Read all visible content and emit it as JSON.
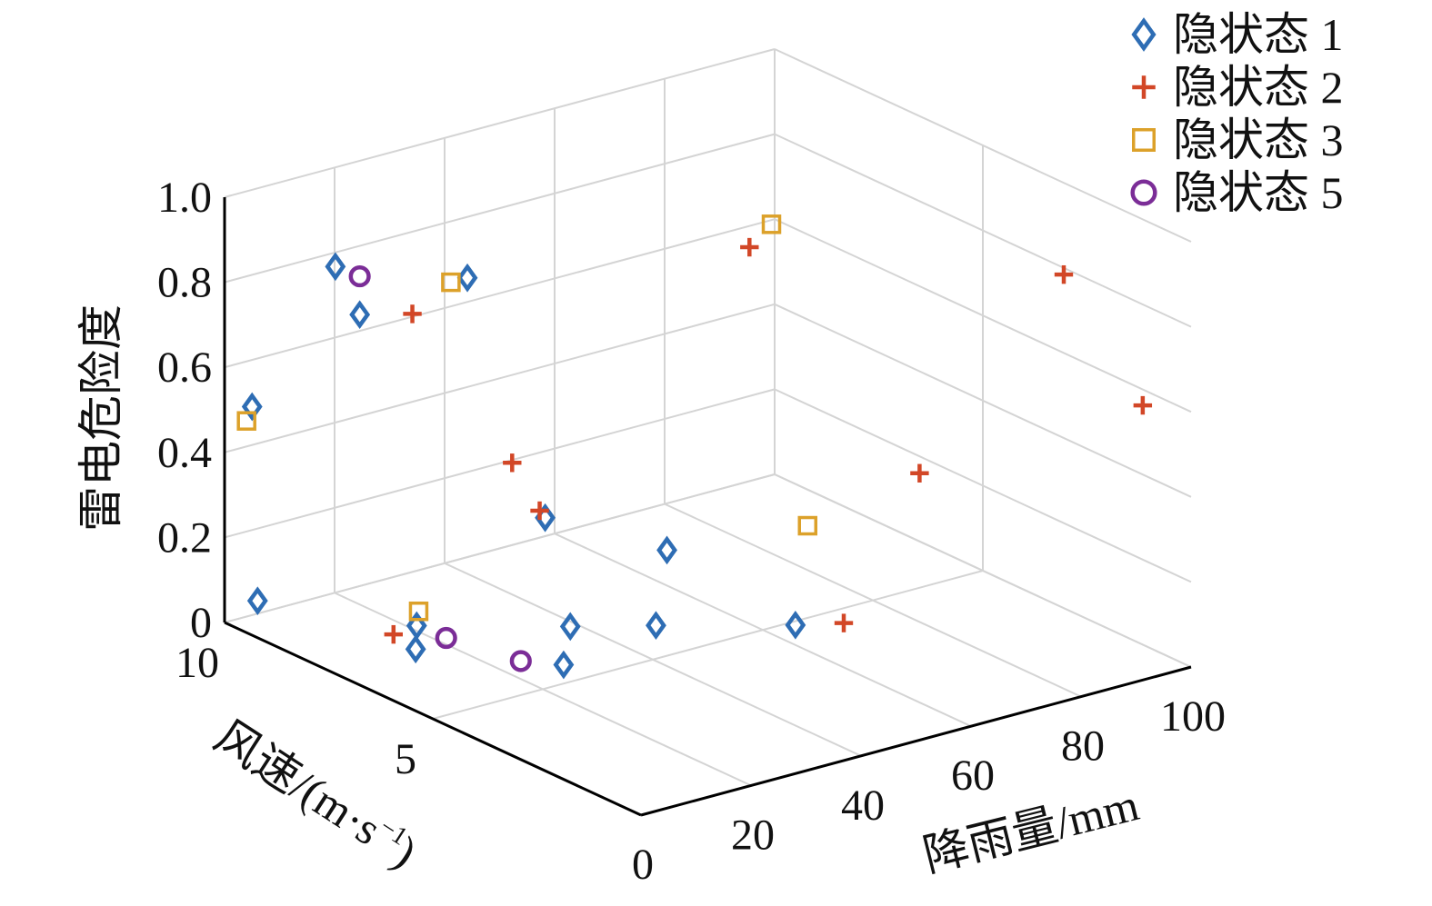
{
  "chart_data": {
    "type": "scatter3d",
    "xlabel": "降雨量/mm",
    "ylabel_prefix": "风速/(m·s",
    "ylabel_sup": "−1",
    "ylabel_suffix": ")",
    "zlabel": "雷电危险度",
    "xlim": [
      0,
      100
    ],
    "ylim": [
      0,
      10
    ],
    "zlim": [
      0,
      1
    ],
    "xticks": [
      0,
      20,
      40,
      60,
      80,
      100
    ],
    "xtick_labels": [
      "0",
      "20",
      "40",
      "60",
      "80",
      "100"
    ],
    "yticks": [
      5,
      10
    ],
    "ytick_labels": [
      "5",
      "10"
    ],
    "zticks": [
      0,
      0.2,
      0.4,
      0.6,
      0.8,
      1.0
    ],
    "ztick_labels": [
      "0",
      "0.2",
      "0.4",
      "0.6",
      "0.8",
      "1.0"
    ],
    "grid": true,
    "legend_position": "top-right",
    "series": [
      {
        "name": "隐状态 1",
        "marker": "diamond",
        "color": "#2e6db4",
        "points": [
          {
            "x": 16,
            "y": 7.5,
            "z": 0.05
          },
          {
            "x": 20,
            "y": 4.5,
            "z": 0.08
          },
          {
            "x": 9,
            "y": 6.6,
            "z": 0.06
          },
          {
            "x": 6,
            "y": 10,
            "z": 0.03
          },
          {
            "x": 25,
            "y": 5,
            "z": 0.13
          },
          {
            "x": 33,
            "y": 4,
            "z": 0.15
          },
          {
            "x": 28,
            "y": 6,
            "z": 0.33
          },
          {
            "x": 47,
            "y": 2.5,
            "z": 0.17
          },
          {
            "x": 5,
            "y": 10,
            "z": 0.49
          },
          {
            "x": 17,
            "y": 9,
            "z": 0.71
          },
          {
            "x": 5,
            "y": 8,
            "z": 0.91
          },
          {
            "x": 29,
            "y": 8,
            "z": 0.8
          },
          {
            "x": 35,
            "y": 4,
            "z": 0.32
          }
        ]
      },
      {
        "name": "隐状态 2",
        "marker": "plus",
        "color": "#d24727",
        "points": [
          {
            "x": 8,
            "y": 7,
            "z": 0.08
          },
          {
            "x": 52,
            "y": 2,
            "z": 0.18
          },
          {
            "x": 27,
            "y": 6,
            "z": 0.35
          },
          {
            "x": 22,
            "y": 6,
            "z": 0.48
          },
          {
            "x": 19,
            "y": 8,
            "z": 0.75
          },
          {
            "x": 50,
            "y": 4,
            "z": 0.98
          },
          {
            "x": 62,
            "y": 1.5,
            "z": 0.52
          },
          {
            "x": 95,
            "y": 0.5,
            "z": 0.61
          },
          {
            "x": 92,
            "y": 2,
            "z": 0.86
          }
        ]
      },
      {
        "name": "隐状态 3",
        "marker": "square",
        "color": "#dca12a",
        "points": [
          {
            "x": 5,
            "y": 6,
            "z": 0.19
          },
          {
            "x": 4,
            "y": 10,
            "z": 0.46
          },
          {
            "x": 26,
            "y": 8,
            "z": 0.8
          },
          {
            "x": 53,
            "y": 3,
            "z": 0.36
          },
          {
            "x": 54,
            "y": 4,
            "z": 1.02
          }
        ]
      },
      {
        "name": "隐状态 5",
        "marker": "circle",
        "color": "#7b2d97",
        "points": [
          {
            "x": 10,
            "y": 6,
            "z": 0.11
          },
          {
            "x": 16,
            "y": 5,
            "z": 0.08
          },
          {
            "x": 17,
            "y": 9,
            "z": 0.8
          }
        ]
      }
    ]
  }
}
